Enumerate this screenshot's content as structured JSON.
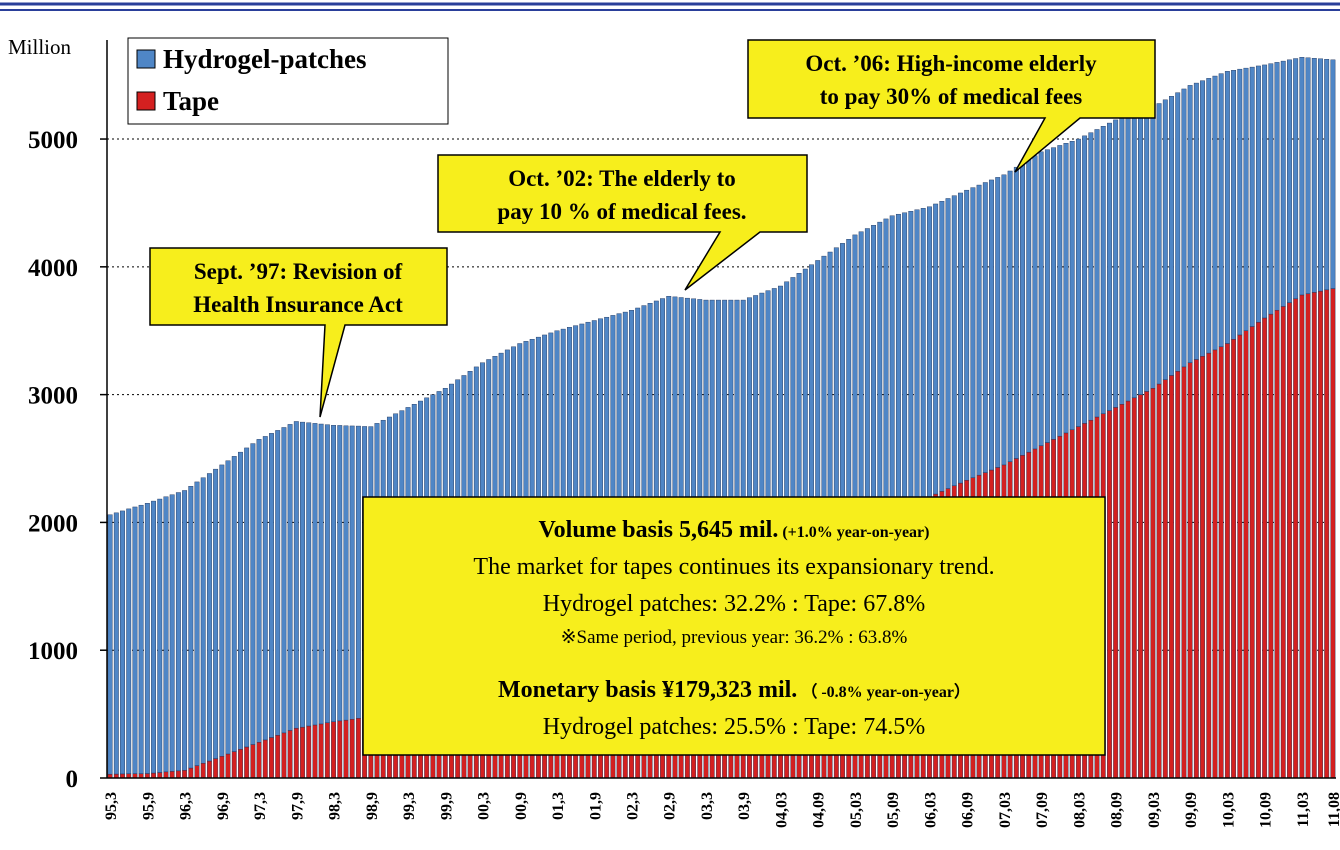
{
  "chart_data": {
    "type": "bar",
    "stacked": true,
    "y_axis_label": "Million",
    "ylim": [
      0,
      5775
    ],
    "yticks": [
      0,
      1000,
      2000,
      3000,
      4000,
      5000
    ],
    "grid": true,
    "legend": "top-left",
    "categories": [
      "95,3",
      null,
      null,
      null,
      null,
      null,
      "95,9",
      null,
      null,
      null,
      null,
      null,
      "96,3",
      null,
      null,
      null,
      null,
      null,
      "96,9",
      null,
      null,
      null,
      null,
      null,
      "97,3",
      null,
      null,
      null,
      null,
      null,
      "97,9",
      null,
      null,
      null,
      null,
      null,
      "98,3",
      null,
      null,
      null,
      null,
      null,
      "98,9",
      null,
      null,
      null,
      null,
      null,
      "99,3",
      null,
      null,
      null,
      null,
      null,
      "99,9",
      null,
      null,
      null,
      null,
      null,
      "00,3",
      null,
      null,
      null,
      null,
      null,
      "00,9",
      null,
      null,
      null,
      null,
      null,
      "01,3",
      null,
      null,
      null,
      null,
      null,
      "01,9",
      null,
      null,
      null,
      null,
      null,
      "02,3",
      null,
      null,
      null,
      null,
      null,
      "02,9",
      null,
      null,
      null,
      null,
      null,
      "03,3",
      null,
      null,
      null,
      null,
      null,
      "03,9",
      null,
      null,
      null,
      null,
      null,
      "04,03",
      null,
      null,
      null,
      null,
      null,
      "04,09",
      null,
      null,
      null,
      null,
      null,
      "05,03",
      null,
      null,
      null,
      null,
      null,
      "05,09",
      null,
      null,
      null,
      null,
      null,
      "06,03",
      null,
      null,
      null,
      null,
      null,
      "06,09",
      null,
      null,
      null,
      null,
      null,
      "07,03",
      null,
      null,
      null,
      null,
      null,
      "07,09",
      null,
      null,
      null,
      null,
      null,
      "08,03",
      null,
      null,
      null,
      null,
      null,
      "08,09",
      null,
      null,
      null,
      null,
      null,
      "09,03",
      null,
      null,
      null,
      null,
      null,
      "09,09",
      null,
      null,
      null,
      null,
      null,
      "10,03",
      null,
      null,
      null,
      null,
      null,
      "10,09",
      null,
      null,
      null,
      null,
      null,
      "11,03",
      null,
      null,
      null,
      null,
      "11,08"
    ],
    "series": [
      {
        "name": "Hydrogel-patches",
        "color": "#4f86c6",
        "values": [
          2030,
          2044,
          2058,
          2073,
          2087,
          2101,
          2115,
          2128,
          2140,
          2153,
          2165,
          2178,
          2190,
          2205,
          2220,
          2235,
          2250,
          2265,
          2280,
          2295,
          2310,
          2325,
          2340,
          2355,
          2370,
          2375,
          2380,
          2385,
          2390,
          2395,
          2400,
          2387,
          2373,
          2360,
          2347,
          2333,
          2320,
          2312,
          2303,
          2295,
          2287,
          2278,
          2270,
          2285,
          2300,
          2315,
          2330,
          2345,
          2360,
          2372,
          2383,
          2395,
          2407,
          2418,
          2430,
          2450,
          2470,
          2490,
          2510,
          2530,
          2550,
          2555,
          2560,
          2565,
          2570,
          2575,
          2580,
          2575,
          2570,
          2565,
          2560,
          2555,
          2550,
          2543,
          2537,
          2530,
          2523,
          2517,
          2510,
          2502,
          2493,
          2485,
          2477,
          2468,
          2460,
          2458,
          2457,
          2455,
          2453,
          2452,
          2450,
          2423,
          2397,
          2370,
          2343,
          2317,
          2290,
          2270,
          2250,
          2230,
          2210,
          2190,
          2170,
          2167,
          2163,
          2160,
          2157,
          2153,
          2150,
          2163,
          2177,
          2190,
          2203,
          2217,
          2230,
          2242,
          2253,
          2265,
          2277,
          2288,
          2300,
          2308,
          2317,
          2325,
          2333,
          2342,
          2350,
          2337,
          2323,
          2310,
          2297,
          2283,
          2270,
          2270,
          2270,
          2270,
          2270,
          2270,
          2270,
          2270,
          2270,
          2270,
          2270,
          2270,
          2270,
          2275,
          2280,
          2285,
          2290,
          2295,
          2300,
          2292,
          2283,
          2275,
          2267,
          2258,
          2250,
          2250,
          2250,
          2250,
          2250,
          2250,
          2250,
          2242,
          2233,
          2225,
          2217,
          2208,
          2200,
          2195,
          2190,
          2185,
          2180,
          2175,
          2170,
          2163,
          2157,
          2150,
          2143,
          2137,
          2130,
          2105,
          2080,
          2055,
          2030,
          2005,
          1980,
          1960,
          1940,
          1920,
          1900,
          1880,
          1860,
          1846,
          1832,
          1818,
          1804,
          1790
        ]
      },
      {
        "name": "Tape",
        "color": "#d42020",
        "values": [
          30,
          31,
          32,
          33,
          34,
          34,
          35,
          39,
          43,
          48,
          52,
          56,
          60,
          78,
          97,
          115,
          133,
          152,
          170,
          188,
          207,
          225,
          243,
          262,
          280,
          298,
          317,
          335,
          353,
          372,
          390,
          398,
          407,
          415,
          423,
          432,
          440,
          447,
          453,
          460,
          467,
          473,
          480,
          490,
          500,
          510,
          520,
          530,
          540,
          553,
          567,
          580,
          593,
          607,
          620,
          633,
          647,
          660,
          673,
          687,
          700,
          720,
          740,
          760,
          780,
          800,
          820,
          842,
          863,
          885,
          907,
          928,
          950,
          970,
          990,
          1010,
          1030,
          1050,
          1070,
          1092,
          1113,
          1135,
          1157,
          1178,
          1200,
          1220,
          1240,
          1260,
          1280,
          1300,
          1320,
          1342,
          1363,
          1385,
          1407,
          1428,
          1450,
          1470,
          1490,
          1510,
          1530,
          1550,
          1570,
          1592,
          1613,
          1635,
          1657,
          1678,
          1700,
          1720,
          1740,
          1760,
          1780,
          1800,
          1820,
          1842,
          1863,
          1885,
          1907,
          1928,
          1950,
          1967,
          1983,
          2000,
          2017,
          2033,
          2050,
          2075,
          2100,
          2125,
          2150,
          2175,
          2200,
          2222,
          2243,
          2265,
          2287,
          2308,
          2330,
          2350,
          2370,
          2390,
          2410,
          2430,
          2450,
          2475,
          2500,
          2525,
          2550,
          2575,
          2600,
          2625,
          2650,
          2675,
          2700,
          2725,
          2750,
          2775,
          2800,
          2825,
          2850,
          2875,
          2900,
          2925,
          2950,
          2975,
          3000,
          3025,
          3050,
          3083,
          3117,
          3150,
          3183,
          3217,
          3250,
          3275,
          3300,
          3325,
          3350,
          3375,
          3400,
          3433,
          3467,
          3500,
          3533,
          3567,
          3600,
          3630,
          3660,
          3690,
          3720,
          3750,
          3780,
          3790,
          3800,
          3810,
          3820,
          3830
        ]
      }
    ],
    "annotations": [
      {
        "lines": [
          "Sept. ’97: Revision of",
          "Health Insurance Act"
        ]
      },
      {
        "lines": [
          "Oct. ’02: The elderly to",
          "pay 10 % of medical fees."
        ]
      },
      {
        "lines": [
          "Oct. ’06: High-income elderly",
          "to pay 30% of medical fees"
        ]
      }
    ],
    "summary": {
      "volume_heading": "Volume basis  5,645 mil.",
      "volume_change": "(+1.0%  year-on-year)",
      "trend": "The market for tapes continues its expansionary trend.",
      "volume_share": "Hydrogel patches: 32.2% : Tape: 67.8%",
      "previous_share": "※Same period, previous year: 36.2% : 63.8%",
      "monetary_heading": "Monetary basis   ¥179,323 mil.",
      "monetary_change": "（ -0.8%  year-on-year）",
      "monetary_share": "Hydrogel patches: 25.5% : Tape: 74.5%"
    }
  }
}
